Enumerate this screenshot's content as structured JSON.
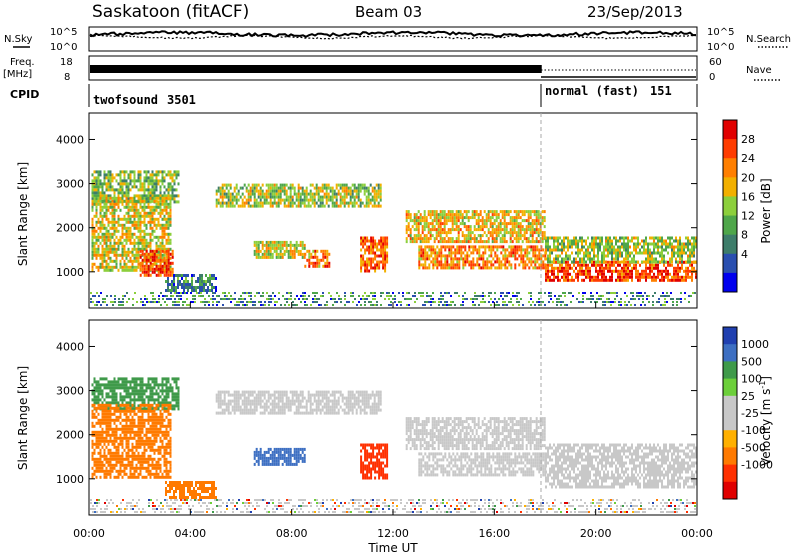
{
  "header": {
    "station": "Saskatoon (fitACF)",
    "beam": "Beam 03",
    "date": "23/Sep/2013"
  },
  "top_panel": {
    "nsky_label": "N.Sky",
    "nsearch_label": "N.Search",
    "freq_label": "Freq.",
    "freq_unit": "[MHz]",
    "nave_label": "Nave",
    "cpid_label": "CPID",
    "nsky_ticks": [
      "10^5",
      "10^0"
    ],
    "nsearch_ticks": [
      "10^5",
      "10^0"
    ],
    "freq_ticks": [
      "18",
      "8"
    ],
    "nave_ticks": [
      "60",
      "0"
    ],
    "cpid_programs": [
      {
        "name": "twofsound",
        "id": "3501"
      },
      {
        "name": "normal (fast)",
        "id": "151"
      }
    ]
  },
  "colors": {
    "power_scale": [
      "#0000ee",
      "#2a4fb0",
      "#3d7d6a",
      "#4ea64a",
      "#8ccf3c",
      "#f2b000",
      "#ff7f00",
      "#ff3c00",
      "#e00000"
    ],
    "velocity_scale": [
      "#2040b0",
      "#3d6fc2",
      "#3f9a4a",
      "#6ccf3a",
      "#c8c8c8",
      "#c8c8c8",
      "#ffb000",
      "#ff7a00",
      "#ff3000",
      "#e00000"
    ]
  },
  "chart_data": [
    {
      "type": "heatmap",
      "title": "Power",
      "xlabel": "",
      "ylabel": "Slant Range [km]",
      "colorbar_label": "Power [dB]",
      "colorbar_ticks": [
        "28",
        "24",
        "20",
        "16",
        "12",
        "8",
        "4"
      ],
      "y_ticks": [
        "4000",
        "3000",
        "2000",
        "1000"
      ],
      "ylim": [
        180,
        4600
      ],
      "xlim": [
        0,
        24
      ],
      "grid": false,
      "regions": [
        {
          "t": [
            0.1,
            3.5
          ],
          "r": [
            2600,
            3300
          ],
          "v": 14
        },
        {
          "t": [
            0.1,
            3.2
          ],
          "r": [
            1000,
            2700
          ],
          "v": 18
        },
        {
          "t": [
            2.0,
            3.3
          ],
          "r": [
            900,
            1500
          ],
          "v": 28
        },
        {
          "t": [
            3.0,
            5.0
          ],
          "r": [
            550,
            950
          ],
          "v": 8
        },
        {
          "t": [
            5.0,
            11.5
          ],
          "r": [
            2500,
            3000
          ],
          "v": 16
        },
        {
          "t": [
            6.5,
            8.5
          ],
          "r": [
            1300,
            1700
          ],
          "v": 18
        },
        {
          "t": [
            8.5,
            9.5
          ],
          "r": [
            1100,
            1500
          ],
          "v": 24
        },
        {
          "t": [
            10.7,
            11.8
          ],
          "r": [
            1000,
            1800
          ],
          "v": 26
        },
        {
          "t": [
            12.5,
            18.0
          ],
          "r": [
            1700,
            2400
          ],
          "v": 20
        },
        {
          "t": [
            13.0,
            18.0
          ],
          "r": [
            1100,
            1600
          ],
          "v": 24
        },
        {
          "t": [
            18.0,
            24.0
          ],
          "r": [
            800,
            1250
          ],
          "v": 28
        },
        {
          "t": [
            18.0,
            24.0
          ],
          "r": [
            1250,
            1800
          ],
          "v": 16
        }
      ]
    },
    {
      "type": "heatmap",
      "title": "Velocity",
      "xlabel": "Time UT",
      "ylabel": "Slant Range [km]",
      "colorbar_label": "Velocity [m s^-1]",
      "colorbar_ticks": [
        "1000",
        "500",
        "100",
        "25",
        "-25",
        "-100",
        "-500",
        "-1000"
      ],
      "y_ticks": [
        "4000",
        "3000",
        "2000",
        "1000"
      ],
      "x_ticks": [
        "00:00",
        "04:00",
        "08:00",
        "12:00",
        "16:00",
        "20:00",
        "00:00"
      ],
      "ylim": [
        180,
        4600
      ],
      "xlim": [
        0,
        24
      ],
      "grid": false,
      "regions": [
        {
          "t": [
            0.1,
            3.5
          ],
          "r": [
            2600,
            3300
          ],
          "v": 100
        },
        {
          "t": [
            0.1,
            3.2
          ],
          "r": [
            1000,
            2700
          ],
          "v": -100
        },
        {
          "t": [
            3.0,
            5.0
          ],
          "r": [
            550,
            950
          ],
          "v": -100
        },
        {
          "t": [
            5.0,
            11.5
          ],
          "r": [
            2500,
            3000
          ],
          "v": 0
        },
        {
          "t": [
            6.5,
            8.5
          ],
          "r": [
            1300,
            1700
          ],
          "v": 500
        },
        {
          "t": [
            10.7,
            11.8
          ],
          "r": [
            1000,
            1800
          ],
          "v": -500
        },
        {
          "t": [
            12.5,
            18.0
          ],
          "r": [
            1700,
            2400
          ],
          "v": 0
        },
        {
          "t": [
            13.0,
            18.0
          ],
          "r": [
            1100,
            1600
          ],
          "v": 0
        },
        {
          "t": [
            18.0,
            24.0
          ],
          "r": [
            800,
            1800
          ],
          "v": 0
        }
      ]
    }
  ]
}
